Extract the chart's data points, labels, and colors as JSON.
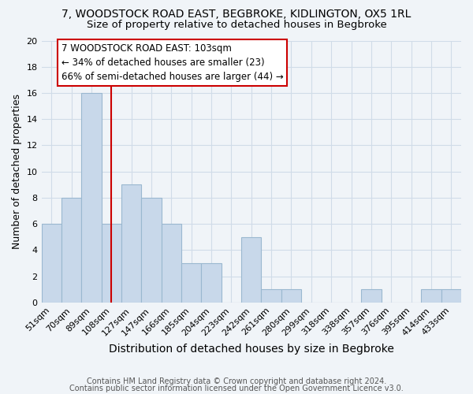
{
  "title1": "7, WOODSTOCK ROAD EAST, BEGBROKE, KIDLINGTON, OX5 1RL",
  "title2": "Size of property relative to detached houses in Begbroke",
  "xlabel": "Distribution of detached houses by size in Begbroke",
  "ylabel": "Number of detached properties",
  "categories": [
    "51sqm",
    "70sqm",
    "89sqm",
    "108sqm",
    "127sqm",
    "147sqm",
    "166sqm",
    "185sqm",
    "204sqm",
    "223sqm",
    "242sqm",
    "261sqm",
    "280sqm",
    "299sqm",
    "318sqm",
    "338sqm",
    "357sqm",
    "376sqm",
    "395sqm",
    "414sqm",
    "433sqm"
  ],
  "values": [
    6,
    8,
    16,
    6,
    9,
    8,
    6,
    3,
    3,
    0,
    5,
    1,
    1,
    0,
    0,
    0,
    1,
    0,
    0,
    1,
    1
  ],
  "bar_color": "#c8d8ea",
  "bar_edge_color": "#9ab8d0",
  "property_line_index": 3,
  "annotation_line1": "7 WOODSTOCK ROAD EAST: 103sqm",
  "annotation_line2": "← 34% of detached houses are smaller (23)",
  "annotation_line3": "66% of semi-detached houses are larger (44) →",
  "annotation_box_facecolor": "#ffffff",
  "annotation_box_edgecolor": "#cc0000",
  "property_line_color": "#cc0000",
  "ylim": [
    0,
    20
  ],
  "yticks": [
    0,
    2,
    4,
    6,
    8,
    10,
    12,
    14,
    16,
    18,
    20
  ],
  "footnote1": "Contains HM Land Registry data © Crown copyright and database right 2024.",
  "footnote2": "Contains public sector information licensed under the Open Government Licence v3.0.",
  "bg_color": "#f0f4f8",
  "grid_color": "#d0dce8",
  "title1_fontsize": 10,
  "title2_fontsize": 9.5,
  "xlabel_fontsize": 10,
  "ylabel_fontsize": 9,
  "tick_fontsize": 8,
  "footnote_fontsize": 7,
  "annot_fontsize": 8.5
}
